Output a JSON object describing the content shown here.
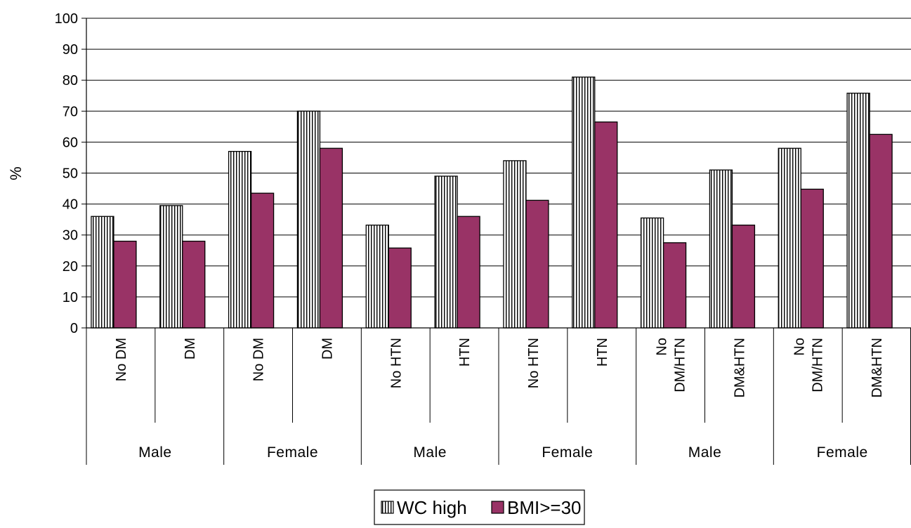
{
  "chart_data": {
    "type": "bar",
    "title": "",
    "xlabel": "",
    "ylabel": "%",
    "ylim": [
      0,
      100
    ],
    "yticks": [
      0,
      10,
      20,
      30,
      40,
      50,
      60,
      70,
      80,
      90,
      100
    ],
    "grid": true,
    "legend_position": "bottom-center",
    "categories": [
      "No DM",
      "DM",
      "No DM",
      "DM",
      "No HTN",
      "HTN",
      "No HTN",
      "HTN",
      "No\nDM/HTN",
      "DM&HTN",
      "No\nDM/HTN",
      "DM&HTN"
    ],
    "groups": [
      "Male",
      "Female",
      "Male",
      "Female",
      "Male",
      "Female"
    ],
    "series": [
      {
        "name": "WC high",
        "pattern": "vertical-stripes",
        "color": "#ffffff",
        "values": [
          36,
          39.5,
          57,
          70,
          33.2,
          49,
          54,
          81,
          35.5,
          51,
          58,
          75.8
        ]
      },
      {
        "name": "BMI>=30",
        "pattern": "solid",
        "color": "#993366",
        "values": [
          28,
          28,
          43.5,
          58,
          25.8,
          36,
          41.2,
          66.5,
          27.5,
          33.2,
          44.8,
          62.5
        ]
      }
    ]
  }
}
